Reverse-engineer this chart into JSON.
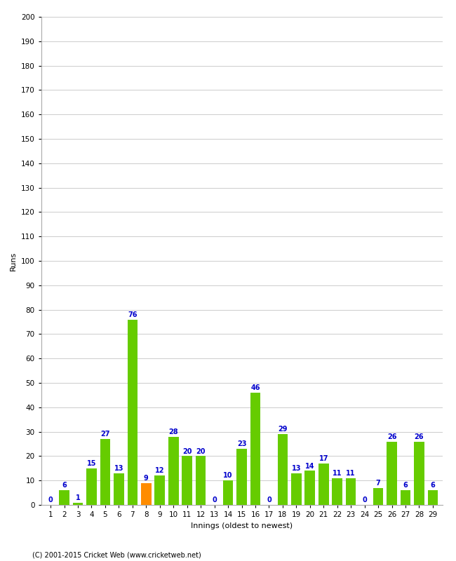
{
  "xlabel": "Innings (oldest to newest)",
  "ylabel": "Runs",
  "innings": [
    1,
    2,
    3,
    4,
    5,
    6,
    7,
    8,
    9,
    10,
    11,
    12,
    13,
    14,
    15,
    16,
    17,
    18,
    19,
    20,
    21,
    22,
    23,
    24,
    25,
    26,
    27,
    28,
    29
  ],
  "values": [
    0,
    6,
    1,
    15,
    27,
    13,
    76,
    9,
    12,
    28,
    20,
    20,
    0,
    10,
    23,
    46,
    0,
    29,
    13,
    14,
    17,
    11,
    11,
    0,
    7,
    26,
    6,
    26,
    6
  ],
  "highlight_index": 7,
  "bar_color": "#66CC00",
  "highlight_color": "#FF8C00",
  "label_color": "#0000CC",
  "background_color": "#FFFFFF",
  "grid_color": "#CCCCCC",
  "ylim": [
    0,
    200
  ],
  "yticks": [
    0,
    10,
    20,
    30,
    40,
    50,
    60,
    70,
    80,
    90,
    100,
    110,
    120,
    130,
    140,
    150,
    160,
    170,
    180,
    190,
    200
  ],
  "footer": "(C) 2001-2015 Cricket Web (www.cricketweb.net)",
  "title_fontsize": 10,
  "label_fontsize": 8,
  "tick_fontsize": 7.5,
  "value_fontsize": 7
}
